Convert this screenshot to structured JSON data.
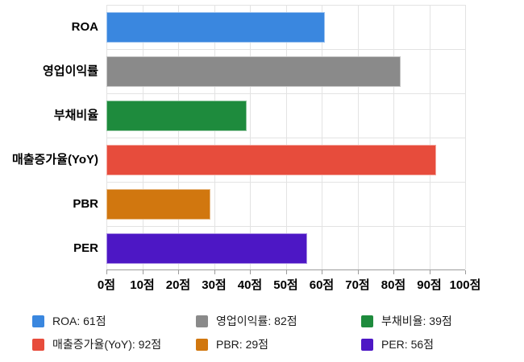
{
  "chart_data": {
    "type": "bar",
    "orientation": "horizontal",
    "title": "",
    "categories": [
      "ROA",
      "영업이익률",
      "부채비율",
      "매출증가율(YoY)",
      "PBR",
      "PER"
    ],
    "values": [
      61,
      82,
      39,
      92,
      29,
      56
    ],
    "unit": "점",
    "colors": [
      "#3a87df",
      "#8a8a8a",
      "#1e8b3d",
      "#e74c3c",
      "#d1770f",
      "#4d17c5"
    ],
    "xlim": [
      0,
      100
    ],
    "x_tick_step": 10,
    "x_tick_labels": [
      "0점",
      "10점",
      "20점",
      "30점",
      "40점",
      "50점",
      "60점",
      "70점",
      "80점",
      "90점",
      "100점"
    ],
    "grid": true,
    "legend_position": "bottom",
    "legend_items": [
      {
        "label": "ROA: 61점",
        "color": "#3a87df"
      },
      {
        "label": "영업이익률: 82점",
        "color": "#8a8a8a"
      },
      {
        "label": "부채비율: 39점",
        "color": "#1e8b3d"
      },
      {
        "label": "매출증가율(YoY): 92점",
        "color": "#e74c3c"
      },
      {
        "label": "PBR: 29점",
        "color": "#d1770f"
      },
      {
        "label": "PER: 56점",
        "color": "#4d17c5"
      }
    ],
    "axis_color": "#9b9b9b",
    "gridline_color": "#e3e3e3",
    "background_color": "#ffffff"
  }
}
